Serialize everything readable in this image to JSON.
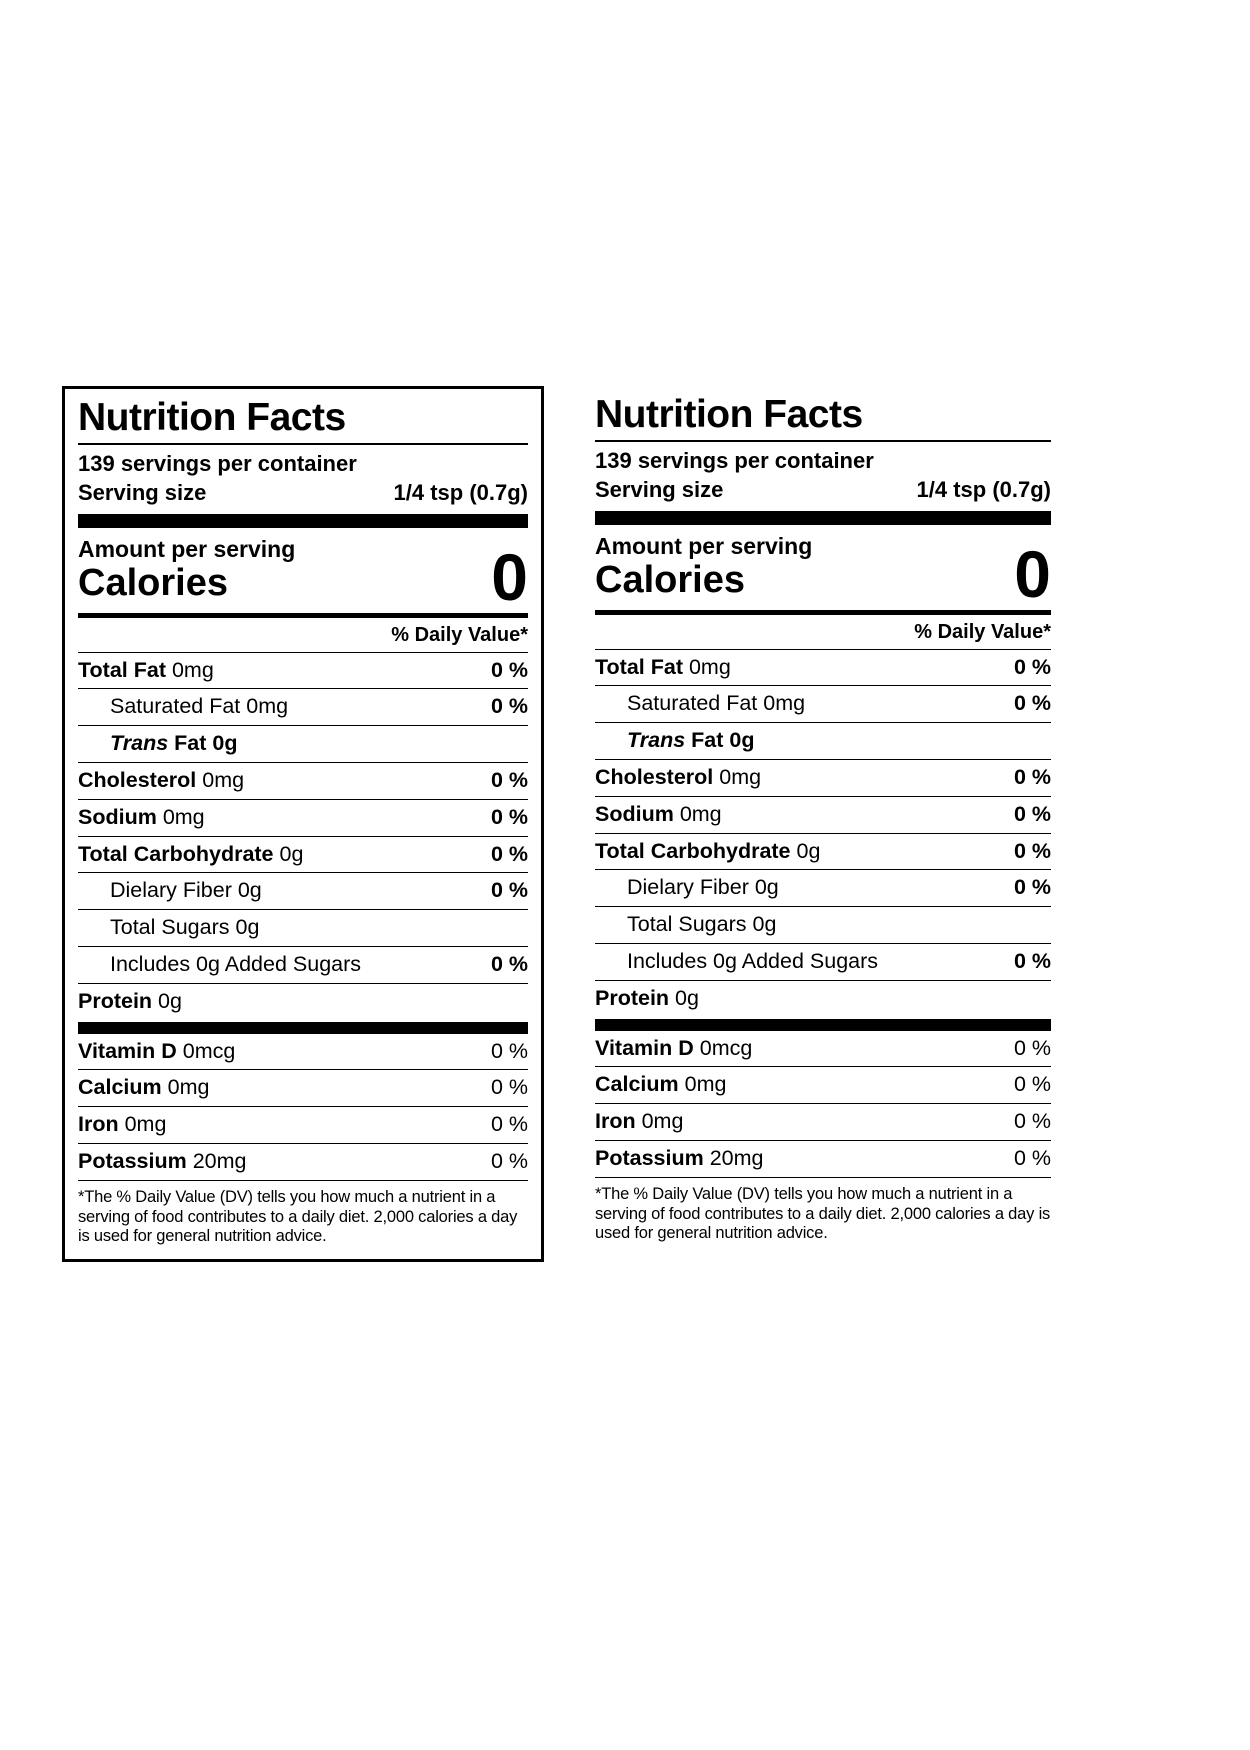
{
  "label": {
    "title": "Nutrition Facts",
    "servings_per_container": "139 servings per container",
    "serving_size_label": "Serving size",
    "serving_size_value": "1/4 tsp (0.7g)",
    "amount_per_serving": "Amount per serving",
    "calories_label": "Calories",
    "calories_value": "0",
    "daily_value_header": "% Daily Value*",
    "rows": [
      {
        "italic": "",
        "bold": "Total Fat ",
        "rest": "0mg",
        "value": "0 %"
      },
      {
        "italic": "",
        "bold": "",
        "rest": "Saturated Fat 0mg",
        "value": "0 %"
      },
      {
        "italic": "Trans ",
        "bold": "Fat 0g",
        "rest": "",
        "value": ""
      },
      {
        "italic": "",
        "bold": "Cholesterol ",
        "rest": "0mg",
        "value": "0 %"
      },
      {
        "italic": "",
        "bold": "Sodium ",
        "rest": "0mg",
        "value": "0 %"
      },
      {
        "italic": "",
        "bold": "Total Carbohydrate ",
        "rest": "0g",
        "value": "0 %"
      },
      {
        "italic": "",
        "bold": "",
        "rest": "Dielary Fiber 0g",
        "value": "0 %"
      },
      {
        "italic": "",
        "bold": "",
        "rest": "Total Sugars 0g",
        "value": ""
      },
      {
        "italic": "",
        "bold": "",
        "rest": "Includes 0g Added Sugars",
        "value": "0 %"
      },
      {
        "italic": "",
        "bold": "Protein ",
        "rest": "0g",
        "value": ""
      }
    ],
    "vitamins": [
      {
        "bold": "Vitamin D ",
        "rest": "0mcg",
        "value": "0 %"
      },
      {
        "bold": "Calcium ",
        "rest": "0mg",
        "value": "0 %"
      },
      {
        "bold": "Iron ",
        "rest": "0mg",
        "value": "0 %"
      },
      {
        "bold": "Potassium ",
        "rest": "20mg",
        "value": "0 %"
      }
    ],
    "footnote": "*The % Daily Value (DV) tells you how much a nutrient in a serving of food contributes to a daily diet. 2,000 calories a day is used for general nutrition advice."
  }
}
